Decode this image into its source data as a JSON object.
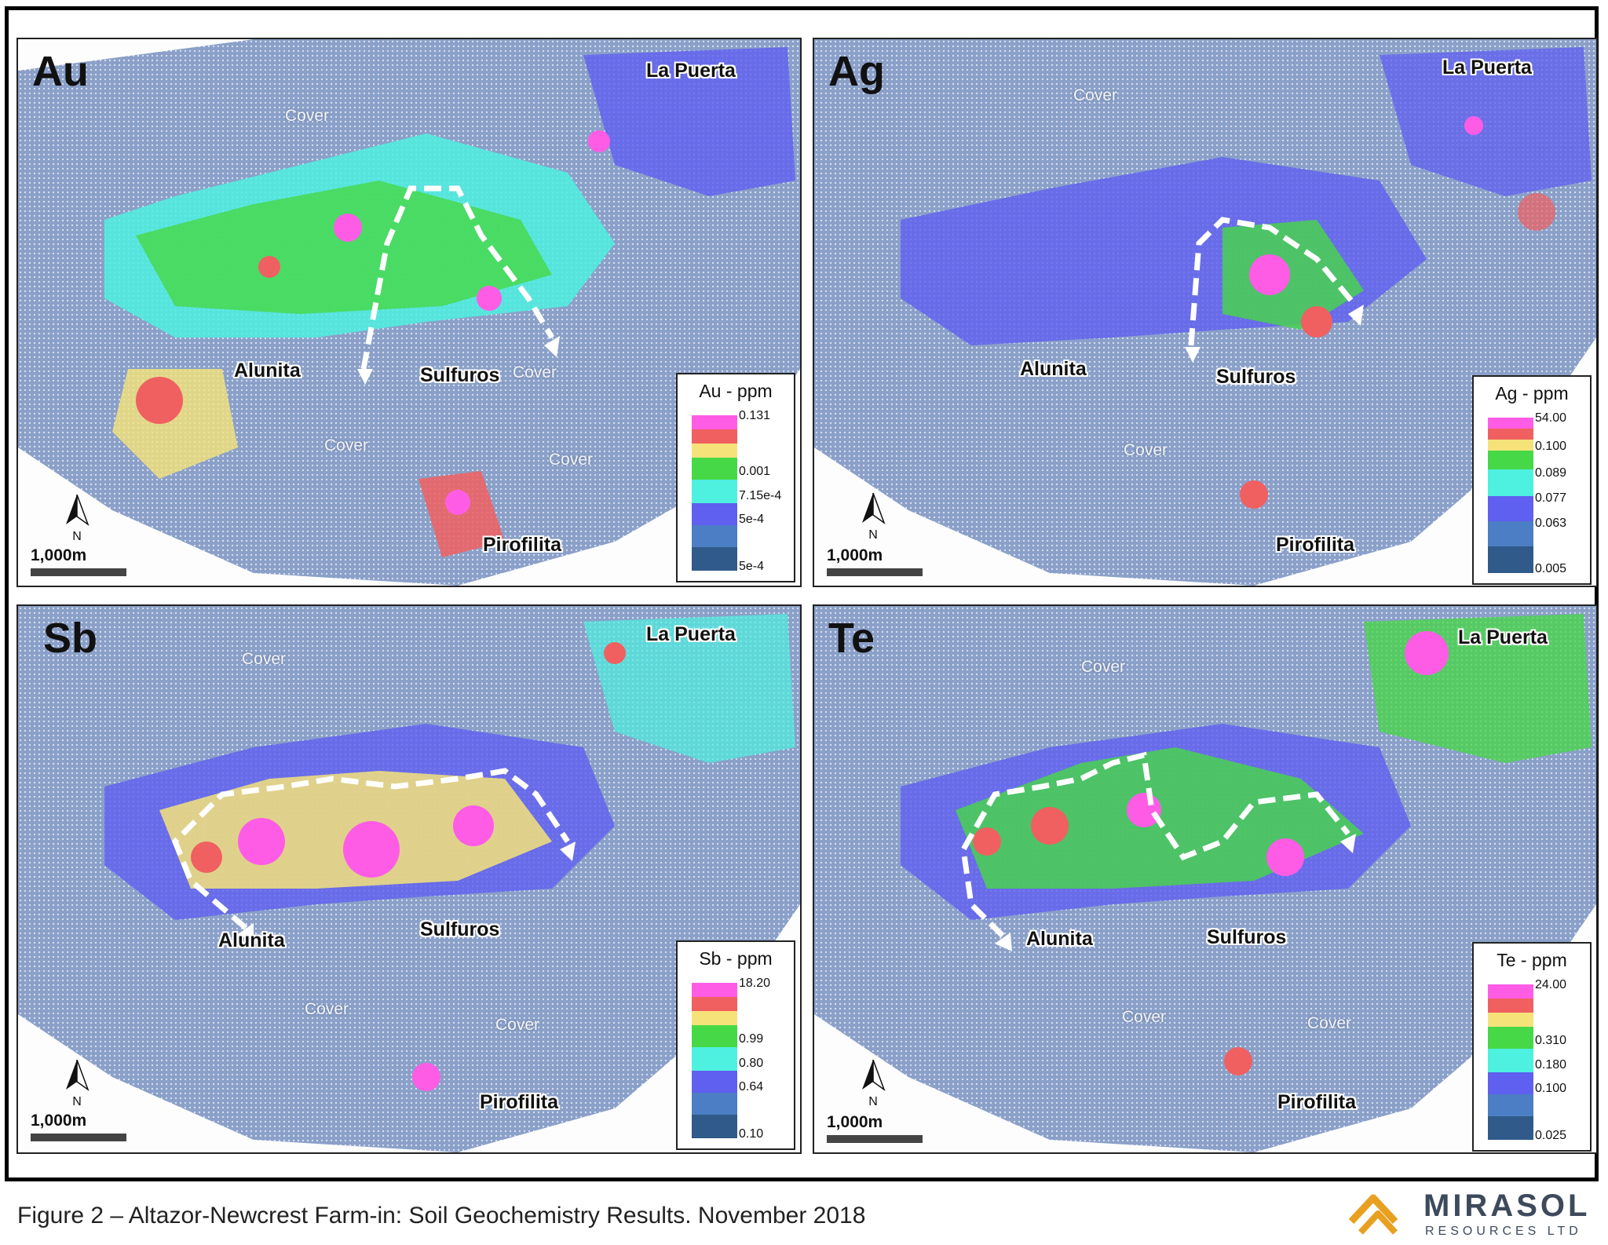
{
  "figure_caption": "Figure 2 – Altazor-Newcrest Farm-in: Soil Geochemistry Results. November 2018",
  "logo": {
    "name": "MIRASOL",
    "subtitle": "RESOURCES LTD"
  },
  "scale_bar": "1,000m",
  "north_label": "N",
  "colors": {
    "ramp": [
      "#ff5ce6",
      "#f06060",
      "#f5e37a",
      "#46d846",
      "#4ef0e0",
      "#5f5ff0",
      "#4b7ec4",
      "#2f5a8a"
    ],
    "background_fill": "#8aa0c8"
  },
  "panels": [
    {
      "element": "Au",
      "legend_title": "Au - ppm",
      "legend_ticks": [
        "0.131",
        "0.001",
        "7.15e-4",
        "5e-4",
        "5e-4"
      ],
      "place_labels": {
        "la_puerta": "La Puerta",
        "alunita": "Alunita",
        "sulfuros": "Sulfuros",
        "pirofilita": "Pirofilita"
      },
      "cover_labels": [
        "Cover",
        "Cover",
        "Cover",
        "Cover"
      ]
    },
    {
      "element": "Ag",
      "legend_title": "Ag - ppm",
      "legend_ticks": [
        "54.00",
        "0.100",
        "0.089",
        "0.077",
        "0.063",
        "0.005"
      ],
      "place_labels": {
        "la_puerta": "La Puerta",
        "alunita": "Alunita",
        "sulfuros": "Sulfuros",
        "pirofilita": "Pirofilita"
      },
      "cover_labels": [
        "Cover",
        "Cover"
      ]
    },
    {
      "element": "Sb",
      "legend_title": "Sb - ppm",
      "legend_ticks": [
        "18.20",
        "0.99",
        "0.80",
        "0.64",
        "0.10"
      ],
      "place_labels": {
        "la_puerta": "La Puerta",
        "alunita": "Alunita",
        "sulfuros": "Sulfuros",
        "pirofilita": "Pirofilita"
      },
      "cover_labels": [
        "Cover",
        "Cover",
        "Cover"
      ]
    },
    {
      "element": "Te",
      "legend_title": "Te - ppm",
      "legend_ticks": [
        "24.00",
        "0.310",
        "0.180",
        "0.100",
        "0.025"
      ],
      "place_labels": {
        "la_puerta": "La Puerta",
        "alunita": "Alunita",
        "sulfuros": "Sulfuros",
        "pirofilita": "Pirofilita"
      },
      "cover_labels": [
        "Cover",
        "Cover",
        "Cover"
      ]
    }
  ]
}
